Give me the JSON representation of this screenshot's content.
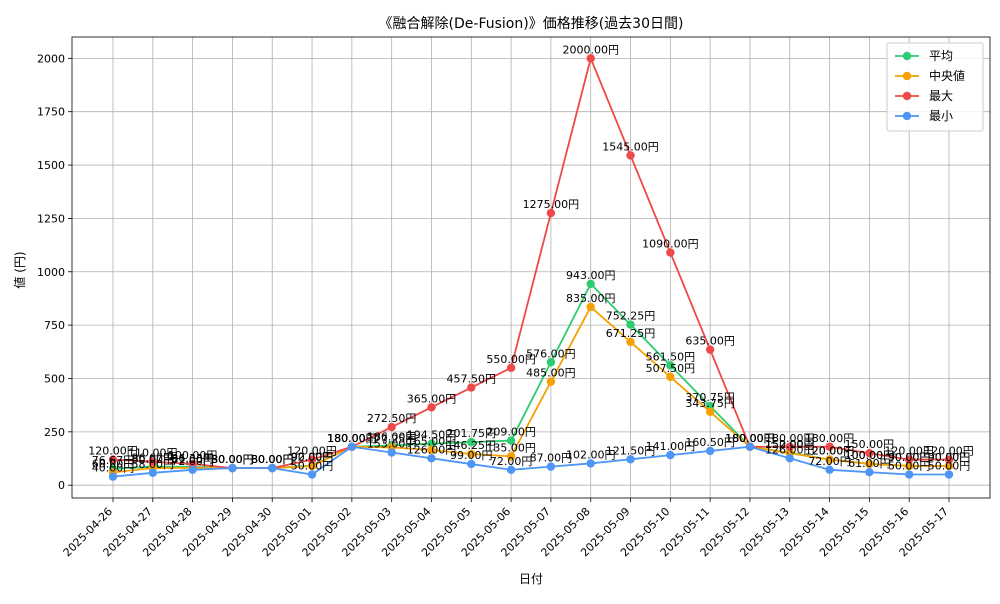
{
  "chart_data": {
    "type": "line",
    "title": "《融合解除(De-Fusion)》価格推移(過去30日間)",
    "xlabel": "日付",
    "ylabel": "値 (円)",
    "ylim": [
      -60,
      2100
    ],
    "yticks": [
      0,
      250,
      500,
      750,
      1000,
      1250,
      1500,
      1750,
      2000
    ],
    "grid": true,
    "legend_position": "top-right",
    "value_suffix": "円",
    "categories": [
      "2025-04-26",
      "2025-04-27",
      "2025-04-28",
      "2025-04-29",
      "2025-04-30",
      "2025-05-01",
      "2025-05-02",
      "2025-05-03",
      "2025-05-04",
      "2025-05-05",
      "2025-05-06",
      "2025-05-07",
      "2025-05-08",
      "2025-05-09",
      "2025-05-10",
      "2025-05-11",
      "2025-05-12",
      "2025-05-13",
      "2025-05-14",
      "2025-05-15",
      "2025-05-16",
      "2025-05-17"
    ],
    "series": [
      {
        "name": "平均",
        "color": "#2ecc71",
        "values": [
          76.67,
          86.67,
          86.33,
          80,
          80,
          92,
          180,
          186,
          194.5,
          201.75,
          209,
          576,
          943,
          752.25,
          561.5,
          370.75,
          180,
          152,
          120,
          100,
          90,
          90
        ]
      },
      {
        "name": "中央値",
        "color": "#f5a003",
        "values": [
          60,
          80,
          81,
          80,
          80,
          90,
          180,
          177.25,
          165,
          146.25,
          135,
          485,
          835,
          671.25,
          507.5,
          343.75,
          180,
          150,
          120,
          100,
          90,
          90
        ]
      },
      {
        "name": "最大",
        "color": "#ef4848",
        "values": [
          120,
          110,
          100,
          80,
          80,
          120,
          180,
          272.5,
          365,
          457.5,
          550,
          1275,
          2000,
          1545,
          1090,
          635,
          180,
          180,
          180,
          150,
          120,
          120
        ]
      },
      {
        "name": "最小",
        "color": "#4d96f5",
        "values": [
          40,
          58,
          72,
          80,
          80,
          50,
          180,
          153,
          126,
          99,
          72,
          87,
          102,
          121.5,
          141,
          160.5,
          180,
          126,
          72,
          61,
          50,
          50
        ]
      }
    ]
  }
}
